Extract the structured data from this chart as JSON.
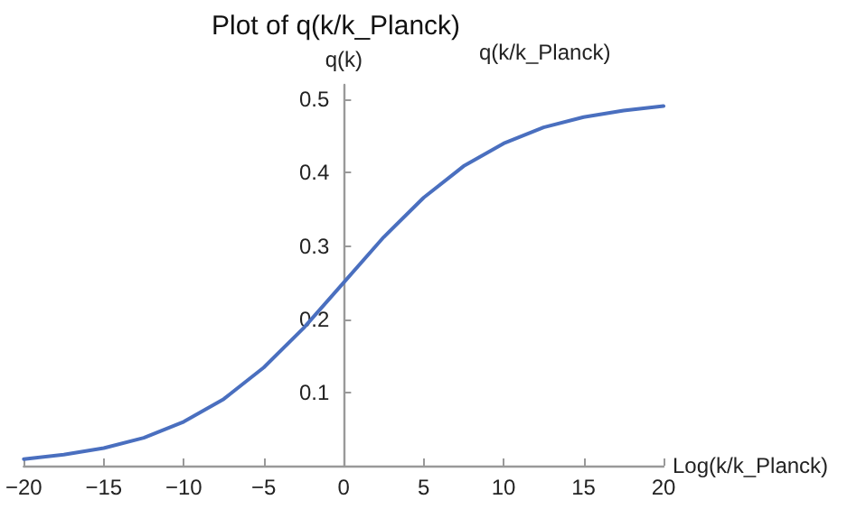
{
  "chart_data": {
    "type": "line",
    "title": "Plot of q(k/k_Planck)",
    "xlabel": "Log(k/k_Planck)",
    "ylabel": "q(k)",
    "series": [
      {
        "name": "q(k/k_Planck)",
        "color": "#4a6fbf",
        "x": [
          -20,
          -17.5,
          -15,
          -12.5,
          -10,
          -7.5,
          -5,
          -2.5,
          0,
          2.5,
          5,
          7.5,
          10,
          12.5,
          15,
          17.5,
          20
        ],
        "values": [
          0.009,
          0.015,
          0.024,
          0.038,
          0.06,
          0.091,
          0.134,
          0.188,
          0.25,
          0.312,
          0.366,
          0.409,
          0.44,
          0.462,
          0.476,
          0.485,
          0.491
        ]
      }
    ],
    "xlim": [
      -20,
      20
    ],
    "xticks": [
      -20,
      -15,
      -10,
      -5,
      0,
      5,
      10,
      15,
      20
    ],
    "ylim": [
      0,
      0.52
    ],
    "yticks": [
      {
        "value": 0,
        "label": null
      },
      0.1,
      0.2,
      0.3,
      0.4,
      0.5
    ],
    "grid": false,
    "legend": false,
    "marker": "none",
    "line_style": "solid"
  }
}
